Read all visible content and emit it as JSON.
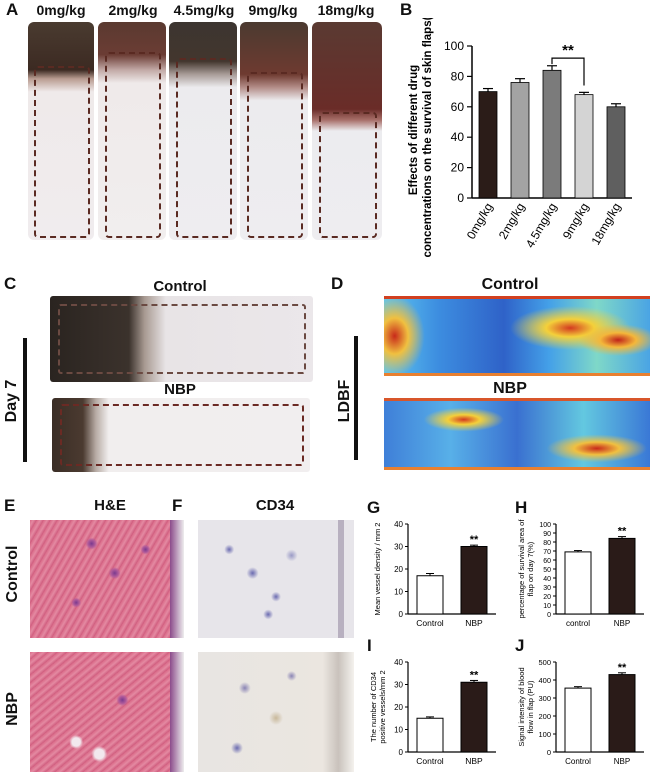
{
  "panels": {
    "A": {
      "label": "A",
      "doses": [
        "0mg/kg",
        "2mg/kg",
        "4.5mg/kg",
        "9mg/kg",
        "18mg/kg"
      ]
    },
    "B": {
      "label": "B"
    },
    "C": {
      "label": "C",
      "top_title": "Control",
      "bottom_title": "NBP",
      "side_label": "Day 7"
    },
    "D": {
      "label": "D",
      "top_title": "Control",
      "bottom_title": "NBP",
      "side_label": "LDBF"
    },
    "E": {
      "label": "E",
      "title": "H&E",
      "row1": "Control",
      "row2": "NBP"
    },
    "F": {
      "label": "F",
      "title": "CD34"
    },
    "G": {
      "label": "G"
    },
    "H": {
      "label": "H"
    },
    "I": {
      "label": "I"
    },
    "J": {
      "label": "J"
    }
  },
  "colors": {
    "dark_bar": "#2a1b18",
    "white_bar": "#ffffff",
    "he_pink": "#d9728f",
    "cd34_bg": "#e6e4e8",
    "ldbf_blue": "#2d59c8"
  },
  "chart_data": [
    {
      "id": "B",
      "type": "bar",
      "ylabel": "Effects of different drug concentrations on the survival of skin flaps(%)",
      "categories": [
        "0mg/kg",
        "2mg/kg",
        "4.5mg/kg",
        "9mg/kg",
        "18mg/kg"
      ],
      "values": [
        70,
        76,
        84,
        68,
        60
      ],
      "errors": [
        2,
        2.5,
        3,
        1.5,
        2
      ],
      "ylim": [
        0,
        100
      ],
      "yticks": [
        "0",
        "20",
        "40",
        "60",
        "80",
        "100"
      ],
      "significance": {
        "label": "**",
        "between": [
          "4.5mg/kg",
          "9mg/kg"
        ]
      },
      "bar_colors": [
        "#2b1c18",
        "#a3a3a3",
        "#7b7b7b",
        "#d4d4d4",
        "#5f5f5f"
      ]
    },
    {
      "id": "G",
      "type": "bar",
      "ylabel": "Mean vessel density / mm 2",
      "categories": [
        "Control",
        "NBP"
      ],
      "values": [
        17,
        30
      ],
      "errors": [
        1,
        0.6
      ],
      "ylim": [
        0,
        40
      ],
      "yticks": [
        "0",
        "10",
        "20",
        "30",
        "40"
      ],
      "significance": {
        "label": "**",
        "on": "NBP"
      }
    },
    {
      "id": "H",
      "type": "bar",
      "ylabel": "percentage of survival area of flap on day 7(%)",
      "categories": [
        "control",
        "NBP"
      ],
      "values": [
        69,
        84
      ],
      "errors": [
        1.5,
        2
      ],
      "ylim": [
        0,
        100
      ],
      "yticks": [
        "0",
        "10",
        "20",
        "30",
        "40",
        "50",
        "60",
        "70",
        "80",
        "90",
        "100"
      ],
      "significance": {
        "label": "**",
        "on": "NBP"
      }
    },
    {
      "id": "I",
      "type": "bar",
      "ylabel": "The number of CD34 positive vessels/mm 2",
      "categories": [
        "Control",
        "NBP"
      ],
      "values": [
        15,
        31
      ],
      "errors": [
        0.6,
        0.8
      ],
      "ylim": [
        0,
        40
      ],
      "yticks": [
        "0",
        "10",
        "20",
        "30",
        "40"
      ],
      "significance": {
        "label": "**",
        "on": "NBP"
      }
    },
    {
      "id": "J",
      "type": "bar",
      "ylabel": "Signal intensity of blood flow in flap (PU)",
      "categories": [
        "Control",
        "NBP"
      ],
      "values": [
        355,
        430
      ],
      "errors": [
        8,
        10
      ],
      "ylim": [
        0,
        500
      ],
      "yticks": [
        "0",
        "100",
        "200",
        "300",
        "400",
        "500"
      ],
      "significance": {
        "label": "**",
        "on": "NBP"
      }
    }
  ]
}
